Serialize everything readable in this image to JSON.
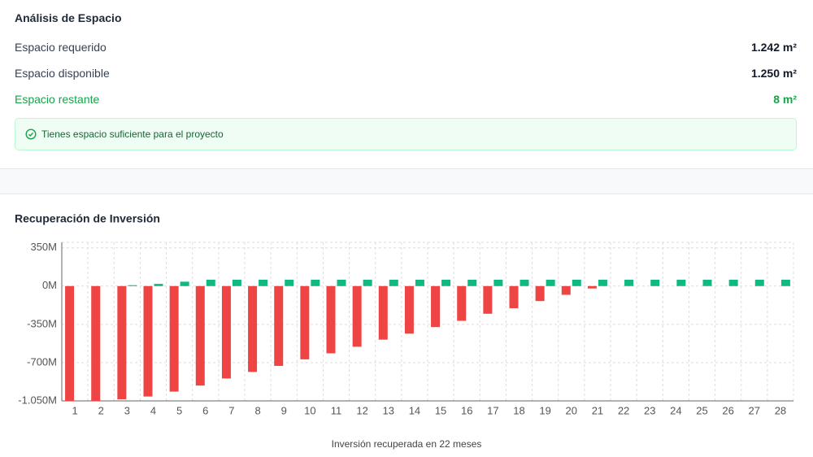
{
  "space": {
    "title": "Análisis de Espacio",
    "rows": [
      {
        "label": "Espacio requerido",
        "value": "1.242 m²"
      },
      {
        "label": "Espacio disponible",
        "value": "1.250 m²"
      },
      {
        "label": "Espacio restante",
        "value": "8 m²"
      }
    ],
    "alert": "Tienes espacio suficiente para el proyecto"
  },
  "chart_data": {
    "type": "bar",
    "title": "Recuperación de Inversión",
    "categories": [
      "1",
      "2",
      "3",
      "4",
      "5",
      "6",
      "7",
      "8",
      "9",
      "10",
      "11",
      "12",
      "13",
      "14",
      "15",
      "16",
      "17",
      "18",
      "19",
      "20",
      "21",
      "22",
      "23",
      "24",
      "25",
      "26",
      "27",
      "28"
    ],
    "series": [
      {
        "color": "#ef4444",
        "values": [
          -1050,
          -1050,
          -1035,
          -1010,
          -965,
          -910,
          -845,
          -785,
          -730,
          -670,
          -615,
          -555,
          -490,
          -435,
          -375,
          -318,
          -253,
          -203,
          -137,
          -80,
          -22,
          null,
          null,
          null,
          null,
          null,
          null,
          null
        ]
      },
      {
        "color": "#10b981",
        "values": [
          0,
          0,
          8,
          20,
          40,
          58,
          58,
          58,
          58,
          58,
          58,
          58,
          58,
          58,
          58,
          58,
          58,
          58,
          58,
          58,
          58,
          58,
          58,
          58,
          58,
          58,
          58,
          58
        ]
      }
    ],
    "ylim": [
      -1050,
      400
    ],
    "yticks": [
      {
        "value": 350,
        "label": "350M"
      },
      {
        "value": 0,
        "label": "0M"
      },
      {
        "value": -350,
        "label": "-350M"
      },
      {
        "value": -700,
        "label": "-700M"
      },
      {
        "value": -1050,
        "label": "-1.050M"
      }
    ],
    "grid": true,
    "footnote": "Inversión recuperada en 22 meses"
  }
}
